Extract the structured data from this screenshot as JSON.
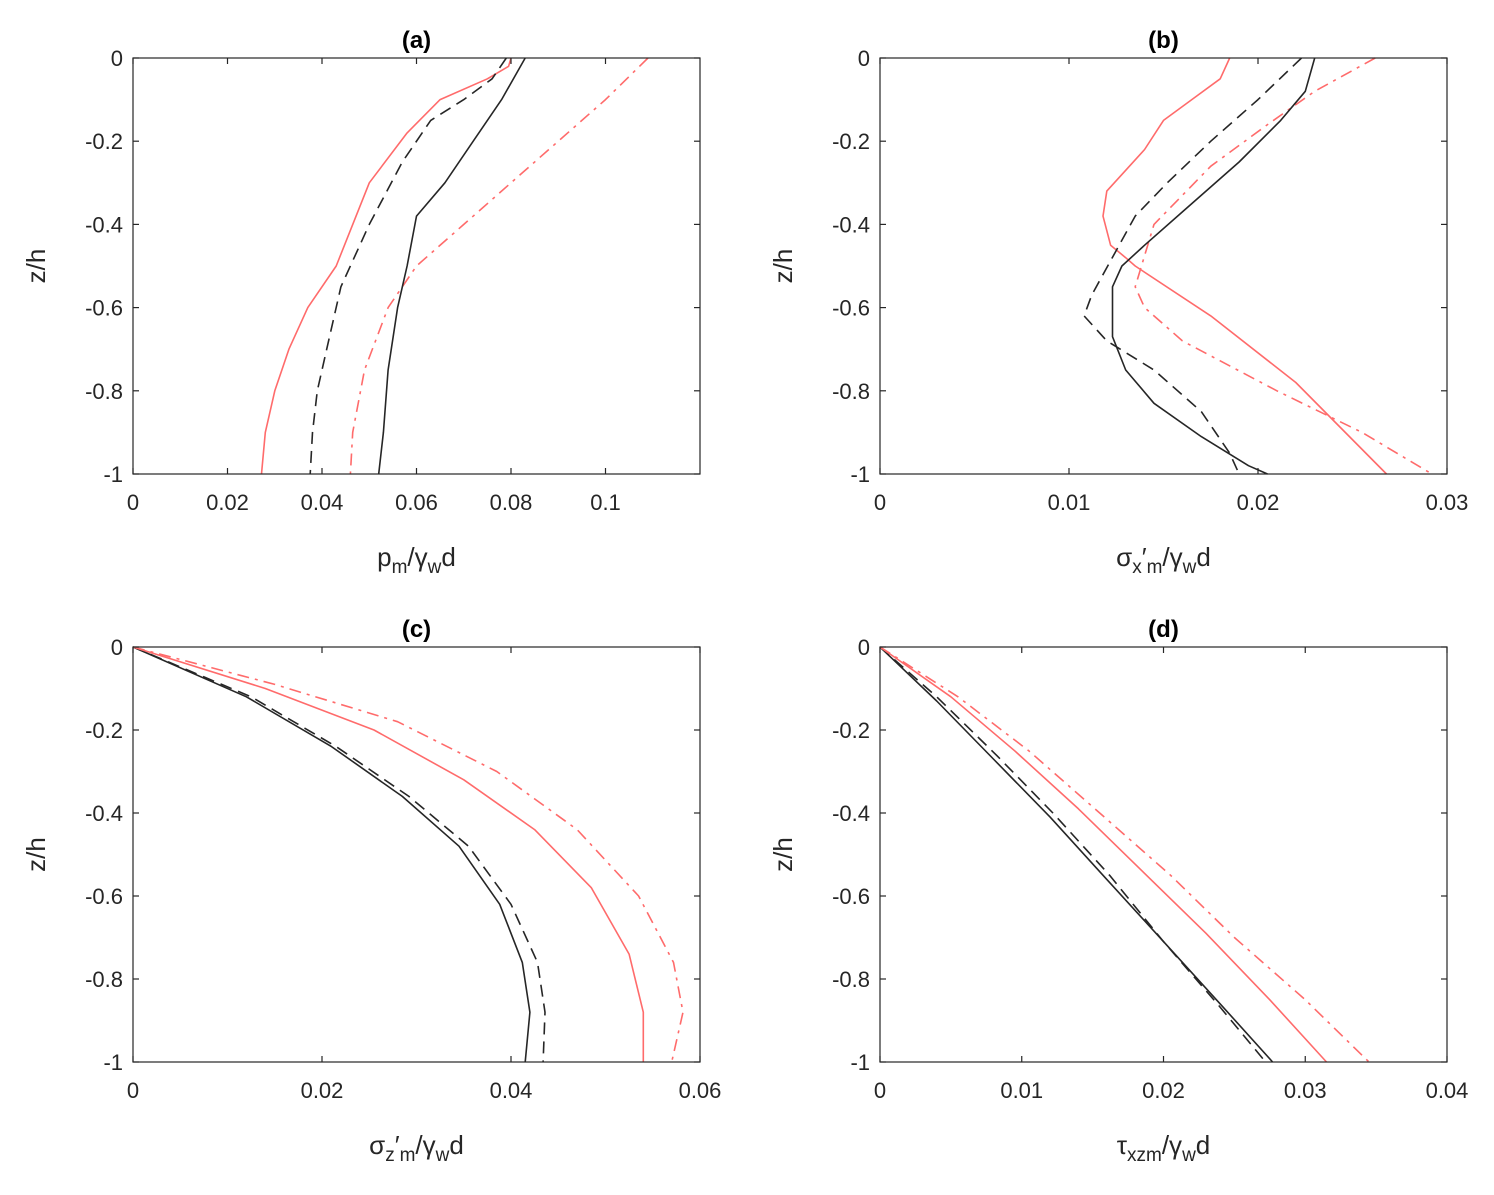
{
  "chart_data": [
    {
      "type": "line",
      "title": "(a)",
      "ylabel": "z/h",
      "xlabel": {
        "base": "p",
        "sub1": "m",
        "mid": "/γ",
        "sub2": "w",
        "tail": "d"
      },
      "xlim": [
        0,
        0.12
      ],
      "ylim": [
        -1,
        0
      ],
      "xticks": [
        "0",
        "0.02",
        "0.04",
        "0.06",
        "0.08",
        "0.1"
      ],
      "yticks": [
        "0",
        "-0.2",
        "-0.4",
        "-0.6",
        "-0.8",
        "-1"
      ],
      "grid": false,
      "series": [
        {
          "color": "#ff6b6b",
          "dash": "solid",
          "x": [
            0.08,
            0.0795,
            0.075,
            0.065,
            0.058,
            0.05,
            0.043,
            0.037,
            0.033,
            0.03,
            0.028,
            0.0272
          ],
          "y": [
            0,
            -0.02,
            -0.05,
            -0.1,
            -0.18,
            -0.3,
            -0.5,
            -0.6,
            -0.7,
            -0.8,
            -0.9,
            -1.0
          ]
        },
        {
          "color": "#262626",
          "dash": "dashed",
          "x": [
            0.079,
            0.076,
            0.07,
            0.063,
            0.057,
            0.05,
            0.044,
            0.041,
            0.039,
            0.038,
            0.0375
          ],
          "y": [
            0,
            -0.05,
            -0.1,
            -0.15,
            -0.25,
            -0.4,
            -0.55,
            -0.7,
            -0.8,
            -0.9,
            -1.0
          ]
        },
        {
          "color": "#ff6b6b",
          "dash": "dashdot",
          "x": [
            0.109,
            0.1,
            0.09,
            0.08,
            0.07,
            0.06,
            0.054,
            0.049,
            0.0465,
            0.046
          ],
          "y": [
            0,
            -0.1,
            -0.2,
            -0.3,
            -0.4,
            -0.5,
            -0.6,
            -0.75,
            -0.9,
            -1.0
          ]
        },
        {
          "color": "#262626",
          "dash": "solid",
          "x": [
            0.083,
            0.078,
            0.072,
            0.066,
            0.06,
            0.058,
            0.056,
            0.054,
            0.053,
            0.052
          ],
          "y": [
            0,
            -0.1,
            -0.2,
            -0.3,
            -0.38,
            -0.5,
            -0.6,
            -0.75,
            -0.9,
            -1.0
          ]
        }
      ]
    },
    {
      "type": "line",
      "title": "(b)",
      "ylabel": "z/h",
      "xlabel": {
        "base": "σ",
        "sub1": "x",
        "mid": "′",
        "sub2": "m",
        "tail": "/γ",
        "sub3": "w",
        "tail2": "d"
      },
      "xlim": [
        0,
        0.03
      ],
      "ylim": [
        -1,
        0
      ],
      "xticks": [
        "0",
        "0.01",
        "0.02",
        "0.03"
      ],
      "yticks": [
        "0",
        "-0.2",
        "-0.4",
        "-0.6",
        "-0.8",
        "-1"
      ],
      "grid": false,
      "series": [
        {
          "color": "#ff6b6b",
          "dash": "solid",
          "x": [
            0.0185,
            0.018,
            0.0165,
            0.015,
            0.014,
            0.013,
            0.012,
            0.0118,
            0.0122,
            0.013,
            0.0135,
            0.0175,
            0.022,
            0.0268
          ],
          "y": [
            0,
            -0.05,
            -0.1,
            -0.15,
            -0.22,
            -0.27,
            -0.32,
            -0.38,
            -0.45,
            -0.48,
            -0.5,
            -0.62,
            -0.78,
            -1.0
          ]
        },
        {
          "color": "#262626",
          "dash": "dashed",
          "x": [
            0.0223,
            0.02,
            0.0175,
            0.0152,
            0.0135,
            0.0112,
            0.0108,
            0.012,
            0.0145,
            0.017,
            0.0185,
            0.019
          ],
          "y": [
            0,
            -0.1,
            -0.2,
            -0.3,
            -0.38,
            -0.57,
            -0.62,
            -0.68,
            -0.75,
            -0.85,
            -0.95,
            -1.0
          ]
        },
        {
          "color": "#ff6b6b",
          "dash": "dashdot",
          "x": [
            0.0262,
            0.023,
            0.0205,
            0.0175,
            0.0145,
            0.0135,
            0.014,
            0.016,
            0.021,
            0.0255,
            0.0292
          ],
          "y": [
            0,
            -0.08,
            -0.16,
            -0.26,
            -0.4,
            -0.55,
            -0.6,
            -0.68,
            -0.8,
            -0.9,
            -1.0
          ]
        },
        {
          "color": "#262626",
          "dash": "solid",
          "x": [
            0.023,
            0.0225,
            0.0212,
            0.019,
            0.016,
            0.014,
            0.0128,
            0.0123,
            0.0123,
            0.013,
            0.0145,
            0.017,
            0.0195,
            0.0205
          ],
          "y": [
            0,
            -0.08,
            -0.15,
            -0.25,
            -0.37,
            -0.45,
            -0.5,
            -0.55,
            -0.67,
            -0.75,
            -0.83,
            -0.91,
            -0.98,
            -1.0
          ]
        }
      ]
    },
    {
      "type": "line",
      "title": "(c)",
      "ylabel": "z/h",
      "xlabel": {
        "base": "σ",
        "sub1": "z",
        "mid": "′",
        "sub2": "m",
        "tail": "/γ",
        "sub3": "w",
        "tail2": "d"
      },
      "xlim": [
        0,
        0.06
      ],
      "ylim": [
        -1,
        0
      ],
      "xticks": [
        "0",
        "0.02",
        "0.04",
        "0.06"
      ],
      "yticks": [
        "0",
        "-0.2",
        "-0.4",
        "-0.6",
        "-0.8",
        "-1"
      ],
      "grid": false,
      "series": [
        {
          "color": "#262626",
          "dash": "solid",
          "x": [
            0,
            0.012,
            0.021,
            0.0285,
            0.0345,
            0.0388,
            0.0412,
            0.042,
            0.0415
          ],
          "y": [
            0,
            -0.12,
            -0.24,
            -0.36,
            -0.48,
            -0.62,
            -0.76,
            -0.88,
            -1.0
          ]
        },
        {
          "color": "#262626",
          "dash": "dashed",
          "x": [
            0,
            0.0125,
            0.0215,
            0.0292,
            0.0355,
            0.04,
            0.0428,
            0.0436,
            0.0434
          ],
          "y": [
            0,
            -0.12,
            -0.24,
            -0.36,
            -0.48,
            -0.62,
            -0.76,
            -0.88,
            -1.0
          ]
        },
        {
          "color": "#ff6b6b",
          "dash": "solid",
          "x": [
            0,
            0.014,
            0.0255,
            0.035,
            0.0425,
            0.0485,
            0.0525,
            0.054,
            0.054
          ],
          "y": [
            0,
            -0.1,
            -0.2,
            -0.32,
            -0.44,
            -0.58,
            -0.74,
            -0.88,
            -1.0
          ]
        },
        {
          "color": "#ff6b6b",
          "dash": "dashdot",
          "x": [
            0,
            0.015,
            0.028,
            0.0385,
            0.047,
            0.0535,
            0.0572,
            0.0582,
            0.057
          ],
          "y": [
            0,
            -0.09,
            -0.18,
            -0.3,
            -0.44,
            -0.6,
            -0.76,
            -0.88,
            -1.0
          ]
        }
      ]
    },
    {
      "type": "line",
      "title": "(d)",
      "ylabel": "z/h",
      "xlabel": {
        "base": "τ",
        "sub1": "xzm",
        "mid": "/γ",
        "sub2": "w",
        "tail": "d"
      },
      "xlim": [
        0,
        0.04
      ],
      "ylim": [
        -1,
        0
      ],
      "xticks": [
        "0",
        "0.01",
        "0.02",
        "0.03",
        "0.04"
      ],
      "yticks": [
        "0",
        "-0.2",
        "-0.4",
        "-0.6",
        "-0.8",
        "-1"
      ],
      "grid": false,
      "series": [
        {
          "color": "#262626",
          "dash": "solid",
          "x": [
            0,
            0.004,
            0.008,
            0.012,
            0.016,
            0.02,
            0.024,
            0.0277
          ],
          "y": [
            0,
            -0.13,
            -0.27,
            -0.41,
            -0.56,
            -0.71,
            -0.86,
            -1.0
          ]
        },
        {
          "color": "#262626",
          "dash": "dashed",
          "x": [
            0,
            0.004,
            0.0082,
            0.0122,
            0.0162,
            0.02,
            0.0238,
            0.0272
          ],
          "y": [
            0,
            -0.12,
            -0.26,
            -0.4,
            -0.55,
            -0.71,
            -0.86,
            -1.0
          ]
        },
        {
          "color": "#ff6b6b",
          "dash": "solid",
          "x": [
            0,
            0.005,
            0.0095,
            0.014,
            0.0185,
            0.023,
            0.0275,
            0.0315
          ],
          "y": [
            0,
            -0.12,
            -0.25,
            -0.39,
            -0.54,
            -0.69,
            -0.85,
            -1.0
          ]
        },
        {
          "color": "#ff6b6b",
          "dash": "dashdot",
          "x": [
            0,
            0.0055,
            0.0105,
            0.0155,
            0.0205,
            0.025,
            0.03,
            0.0345
          ],
          "y": [
            0,
            -0.12,
            -0.25,
            -0.4,
            -0.55,
            -0.7,
            -0.85,
            -1.0
          ]
        }
      ]
    }
  ]
}
